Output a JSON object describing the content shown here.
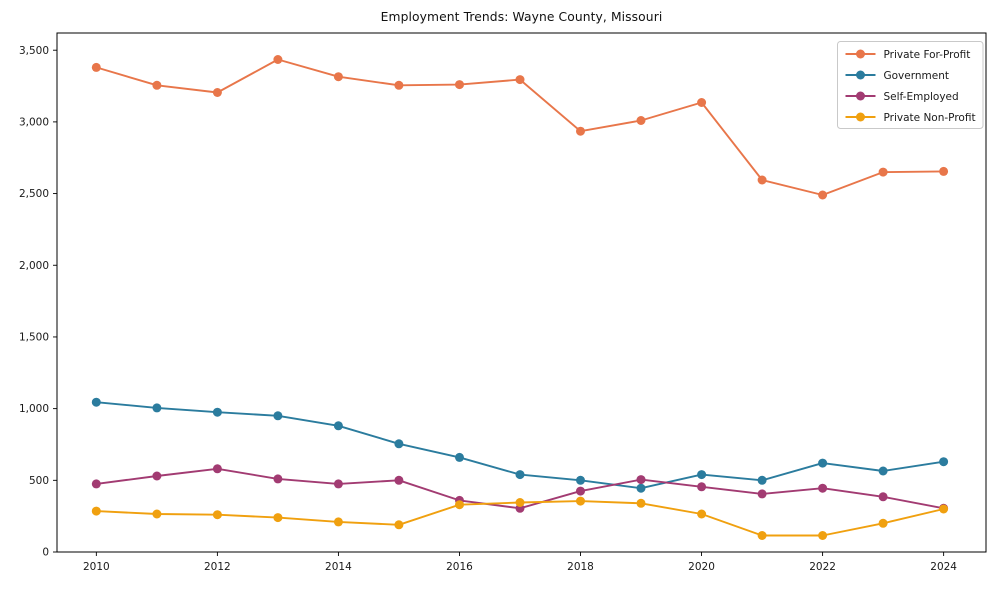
{
  "figure": {
    "title": "Employment Trends: Wayne County, Missouri"
  },
  "chart_data": {
    "type": "line",
    "title": "Employment Trends: Wayne County, Missouri",
    "xlabel": "",
    "ylabel": "",
    "grid": false,
    "legend_position": "upper right",
    "marker": "o",
    "x": [
      2010,
      2011,
      2012,
      2013,
      2014,
      2015,
      2016,
      2017,
      2018,
      2019,
      2020,
      2021,
      2022,
      2023,
      2024
    ],
    "x_ticks": [
      2010,
      2012,
      2014,
      2016,
      2018,
      2020,
      2022,
      2024
    ],
    "x_tick_labels": [
      "2010",
      "2012",
      "2014",
      "2016",
      "2018",
      "2020",
      "2022",
      "2024"
    ],
    "y_ticks": [
      0,
      500,
      1000,
      1500,
      2000,
      2500,
      3000,
      3500
    ],
    "y_tick_labels": [
      "0",
      "500",
      "1,000",
      "1,500",
      "2,000",
      "2,500",
      "3,000",
      "3,500"
    ],
    "xlim": [
      2009.35,
      2024.7
    ],
    "ylim": [
      0,
      3620
    ],
    "series": [
      {
        "name": "Private For-Profit",
        "color": "#e8764a",
        "values": [
          3380,
          3255,
          3205,
          3435,
          3315,
          3255,
          3260,
          3295,
          2935,
          3010,
          3135,
          2595,
          2490,
          2650,
          2655
        ]
      },
      {
        "name": "Government",
        "color": "#2b7c9e",
        "values": [
          1045,
          1005,
          975,
          950,
          880,
          755,
          660,
          540,
          500,
          445,
          540,
          500,
          620,
          565,
          630
        ]
      },
      {
        "name": "Self-Employed",
        "color": "#a23b72",
        "values": [
          475,
          530,
          580,
          510,
          475,
          500,
          360,
          305,
          425,
          505,
          455,
          405,
          445,
          385,
          305
        ]
      },
      {
        "name": "Private Non-Profit",
        "color": "#f0a00f",
        "values": [
          285,
          265,
          260,
          240,
          210,
          190,
          330,
          345,
          355,
          340,
          265,
          115,
          115,
          200,
          300
        ]
      }
    ]
  }
}
